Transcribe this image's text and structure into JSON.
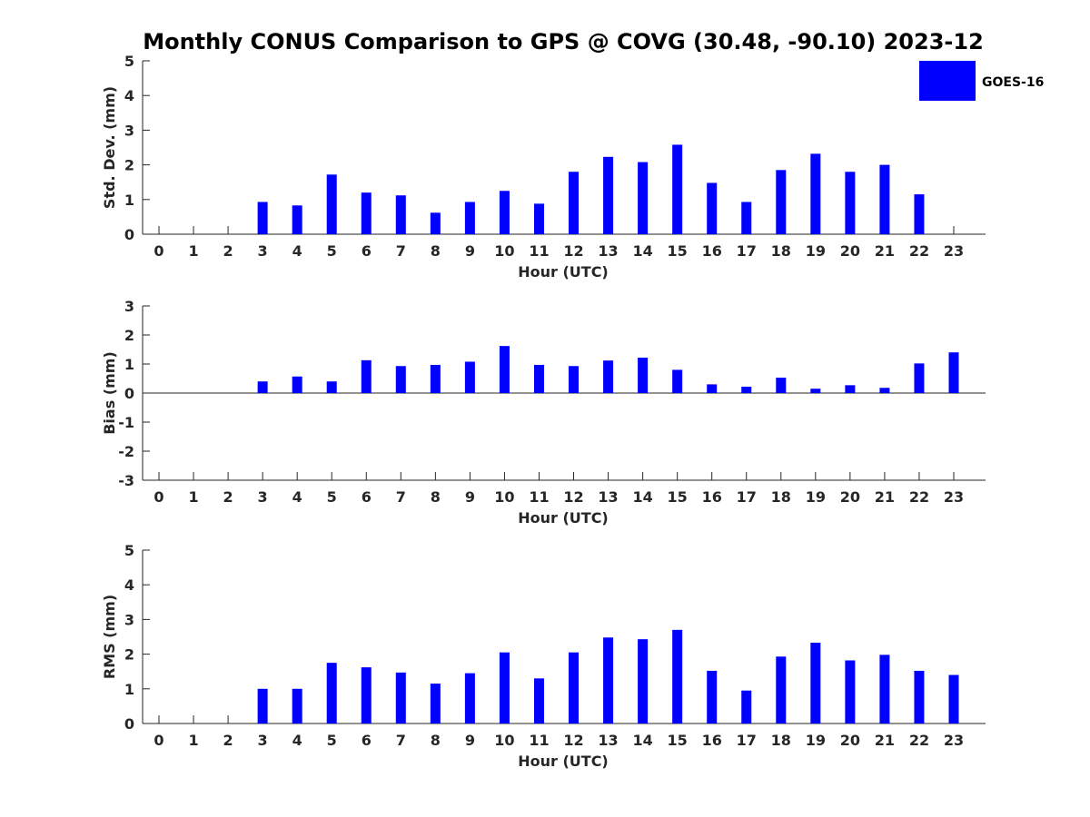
{
  "title": "Monthly CONUS Comparison to GPS @ COVG (30.48, -90.10) 2023-12",
  "legend": {
    "label": "GOES-16",
    "color": "#0000ff"
  },
  "chart_data": [
    {
      "type": "bar",
      "xlabel": "Hour (UTC)",
      "ylabel": "Std. Dev. (mm)",
      "ylim": [
        0,
        5
      ],
      "yticks": [
        "0",
        "1",
        "2",
        "3",
        "4",
        "5"
      ],
      "categories": [
        "0",
        "1",
        "2",
        "3",
        "4",
        "5",
        "6",
        "7",
        "8",
        "9",
        "10",
        "11",
        "12",
        "13",
        "14",
        "15",
        "16",
        "17",
        "18",
        "19",
        "20",
        "21",
        "22",
        "23"
      ],
      "series": [
        {
          "name": "GOES-16",
          "values": [
            null,
            null,
            null,
            0.93,
            0.83,
            1.72,
            1.2,
            1.12,
            0.62,
            0.93,
            1.25,
            0.88,
            1.8,
            2.23,
            2.08,
            2.58,
            1.48,
            0.93,
            1.85,
            2.32,
            1.8,
            2.0,
            1.15,
            null
          ]
        }
      ]
    },
    {
      "type": "bar",
      "xlabel": "Hour (UTC)",
      "ylabel": "Bias (mm)",
      "ylim": [
        -3,
        3
      ],
      "yticks": [
        "-3",
        "-2",
        "-1",
        "0",
        "1",
        "2",
        "3"
      ],
      "zero_line": true,
      "categories": [
        "0",
        "1",
        "2",
        "3",
        "4",
        "5",
        "6",
        "7",
        "8",
        "9",
        "10",
        "11",
        "12",
        "13",
        "14",
        "15",
        "16",
        "17",
        "18",
        "19",
        "20",
        "21",
        "22",
        "23"
      ],
      "series": [
        {
          "name": "GOES-16",
          "values": [
            null,
            null,
            null,
            0.4,
            0.57,
            0.4,
            1.13,
            0.93,
            0.97,
            1.08,
            1.62,
            0.97,
            0.93,
            1.12,
            1.22,
            0.8,
            0.3,
            0.22,
            0.53,
            0.15,
            0.27,
            0.18,
            1.02,
            1.4
          ]
        }
      ]
    },
    {
      "type": "bar",
      "xlabel": "Hour (UTC)",
      "ylabel": "RMS (mm)",
      "ylim": [
        0,
        5
      ],
      "yticks": [
        "0",
        "1",
        "2",
        "3",
        "4",
        "5"
      ],
      "categories": [
        "0",
        "1",
        "2",
        "3",
        "4",
        "5",
        "6",
        "7",
        "8",
        "9",
        "10",
        "11",
        "12",
        "13",
        "14",
        "15",
        "16",
        "17",
        "18",
        "19",
        "20",
        "21",
        "22",
        "23"
      ],
      "series": [
        {
          "name": "GOES-16",
          "values": [
            null,
            null,
            null,
            1.0,
            1.0,
            1.75,
            1.62,
            1.47,
            1.15,
            1.45,
            2.05,
            1.3,
            2.05,
            2.48,
            2.43,
            2.7,
            1.52,
            0.95,
            1.93,
            2.33,
            1.82,
            1.98,
            1.52,
            1.4
          ]
        }
      ]
    }
  ]
}
